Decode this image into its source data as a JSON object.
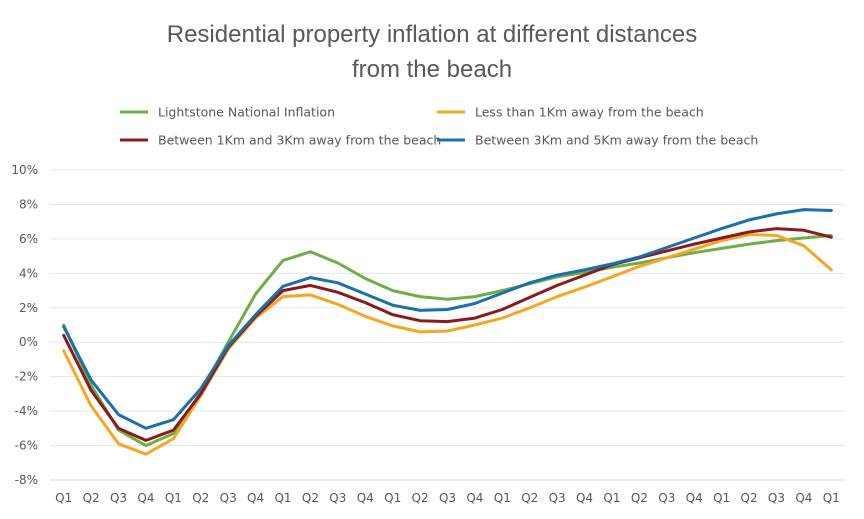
{
  "chart_data": {
    "type": "line",
    "title": [
      "Residential property inflation at different distances",
      "from the beach"
    ],
    "xlabel": "",
    "ylabel": "",
    "ylim": [
      -8,
      10
    ],
    "y_ticks": [
      "10%",
      "8%",
      "6%",
      "4%",
      "2%",
      "0%",
      "-2%",
      "-4%",
      "-6%",
      "-8%"
    ],
    "y_tick_values": [
      10,
      8,
      6,
      4,
      2,
      0,
      -2,
      -4,
      -6,
      -8
    ],
    "categories": [
      "Q1",
      "Q2",
      "Q3",
      "Q4",
      "Q1",
      "Q2",
      "Q3",
      "Q4",
      "Q1",
      "Q2",
      "Q3",
      "Q4",
      "Q1",
      "Q2",
      "Q3",
      "Q4",
      "Q1",
      "Q2",
      "Q3",
      "Q4",
      "Q1",
      "Q2",
      "Q3",
      "Q4",
      "Q1",
      "Q2",
      "Q3",
      "Q4",
      "Q1"
    ],
    "grid": true,
    "legend_position": "top",
    "series": [
      {
        "name": "Lightstone National Inflation",
        "color": "#70ad47",
        "values": [
          1.0,
          -2.5,
          -5.1,
          -6.0,
          -5.3,
          -2.9,
          0.0,
          2.8,
          4.75,
          5.25,
          4.6,
          3.7,
          3.0,
          2.65,
          2.5,
          2.65,
          3.0,
          3.4,
          3.8,
          4.05,
          4.35,
          4.6,
          4.9,
          5.2,
          5.45,
          5.7,
          5.9,
          6.05,
          6.2
        ]
      },
      {
        "name": "Less than 1Km away from the beach",
        "color": "#f5a623",
        "values": [
          -0.5,
          -3.7,
          -5.9,
          -6.5,
          -5.6,
          -3.1,
          -0.4,
          1.4,
          2.65,
          2.75,
          2.2,
          1.5,
          0.95,
          0.6,
          0.65,
          1.0,
          1.4,
          2.0,
          2.65,
          3.2,
          3.8,
          4.4,
          4.9,
          5.4,
          5.9,
          6.25,
          6.2,
          5.6,
          4.2
        ]
      },
      {
        "name": "Between 1Km and 3Km away from the beach",
        "color": "#8b1a1a",
        "values": [
          0.4,
          -2.8,
          -5.0,
          -5.7,
          -5.1,
          -3.0,
          -0.3,
          1.5,
          3.0,
          3.3,
          2.9,
          2.3,
          1.6,
          1.25,
          1.2,
          1.4,
          1.9,
          2.6,
          3.3,
          3.9,
          4.5,
          4.9,
          5.3,
          5.7,
          6.05,
          6.4,
          6.6,
          6.5,
          6.1
        ]
      },
      {
        "name": "Between 3Km and 5Km away from the beach",
        "color": "#1a6fad",
        "values": [
          0.9,
          -2.2,
          -4.2,
          -5.0,
          -4.5,
          -2.7,
          -0.2,
          1.6,
          3.25,
          3.75,
          3.45,
          2.8,
          2.15,
          1.85,
          1.9,
          2.25,
          2.85,
          3.45,
          3.9,
          4.2,
          4.55,
          4.95,
          5.5,
          6.05,
          6.6,
          7.1,
          7.45,
          7.7,
          7.65
        ]
      }
    ]
  }
}
